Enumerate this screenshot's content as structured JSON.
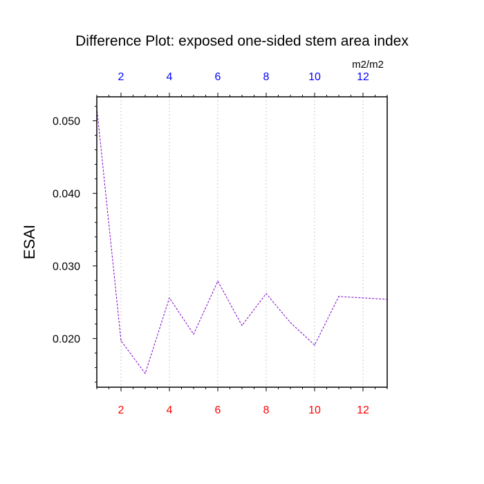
{
  "chart_data": {
    "type": "line",
    "title": "Difference Plot: exposed one-sided stem area index",
    "ylabel": "ESAI",
    "units_label": "m2/m2",
    "xlim": [
      1,
      13
    ],
    "ylim": [
      0.0133,
      0.0533
    ],
    "x_ticks": [
      2,
      4,
      6,
      8,
      10,
      12
    ],
    "y_ticks": [
      0.02,
      0.03,
      0.04,
      0.05
    ],
    "y_tick_labels": [
      "0.020",
      "0.030",
      "0.040",
      "0.050"
    ],
    "grid": "vertical dotted at x ticks",
    "series": [
      {
        "x": [
          1,
          2,
          3,
          4,
          5,
          6,
          7,
          8,
          9,
          10,
          11,
          12,
          13
        ],
        "values": [
          0.0518,
          0.0197,
          0.0152,
          0.0256,
          0.0206,
          0.0279,
          0.0218,
          0.0262,
          0.0222,
          0.0191,
          0.0258,
          0.0256,
          0.0254
        ],
        "color": "#7a00c8",
        "style": "dashed"
      }
    ]
  },
  "colors": {
    "top_axis_labels": "#0000ff",
    "bottom_axis_labels": "#ff0000",
    "line": "#7a00c8",
    "frame": "#000000",
    "grid": "#c8c8c8"
  }
}
